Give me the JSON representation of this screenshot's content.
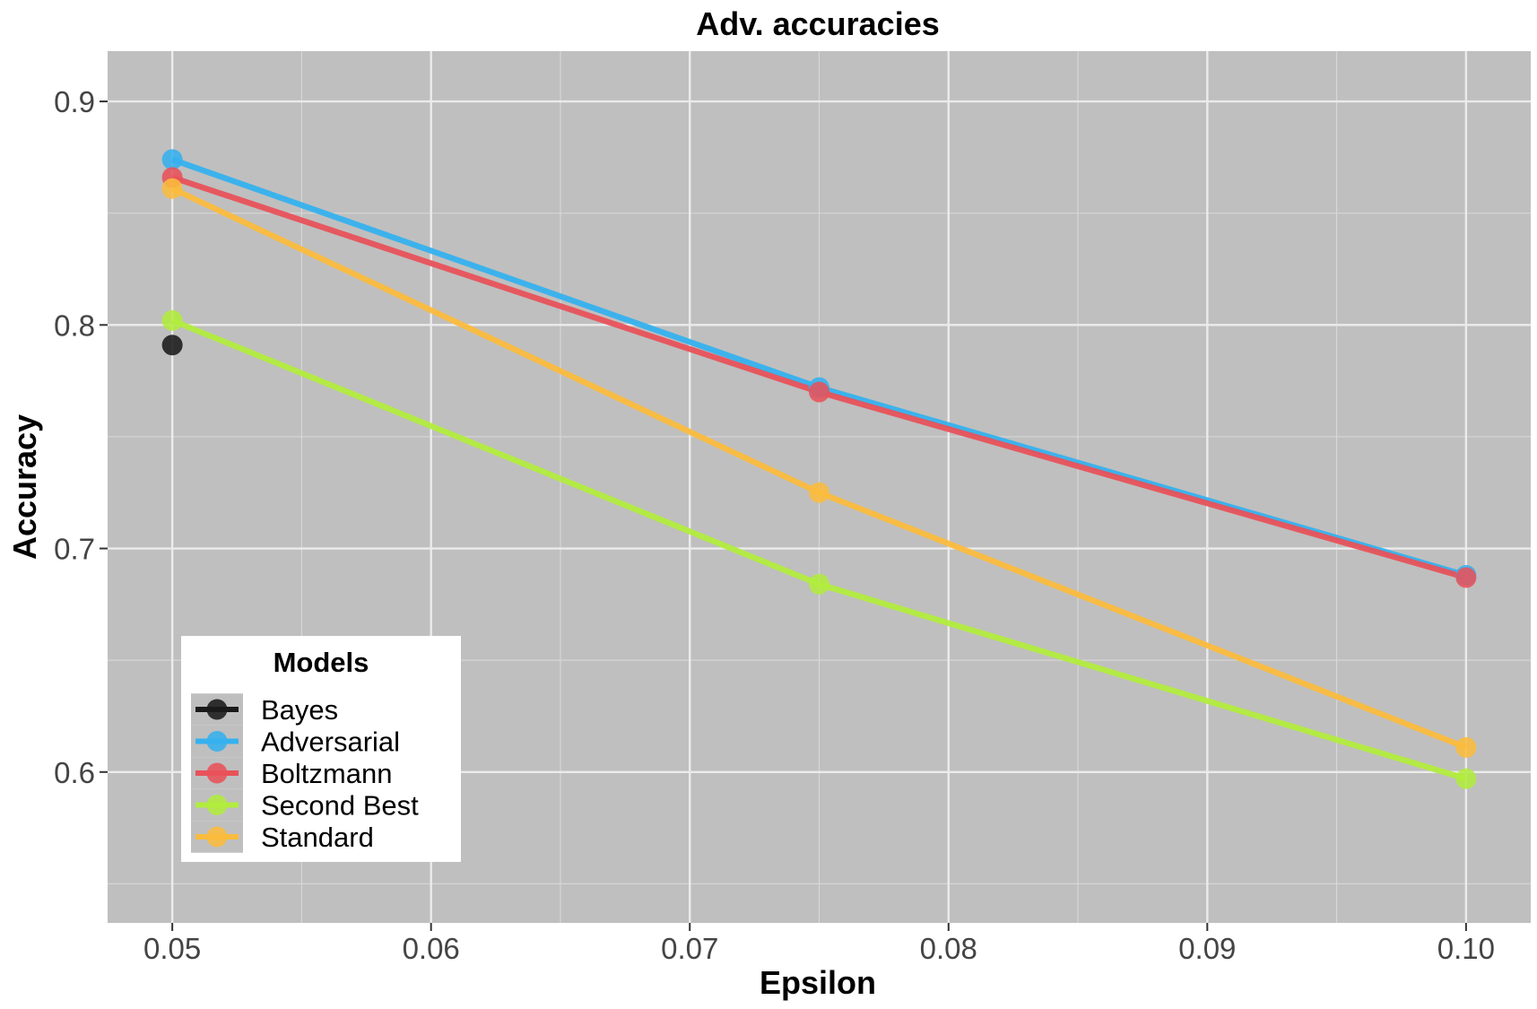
{
  "chart_data": {
    "type": "line",
    "title": "Adv. accuracies",
    "xlabel": "Epsilon",
    "ylabel": "Accuracy",
    "xlim": [
      0.0475,
      0.1025
    ],
    "ylim": [
      0.5325,
      0.9225
    ],
    "x_ticks": [
      0.05,
      0.06,
      0.07,
      0.08,
      0.09,
      0.1
    ],
    "x_tick_labels": [
      "0.05",
      "0.06",
      "0.07",
      "0.08",
      "0.09",
      "0.10"
    ],
    "x_minor_ticks": [
      0.055,
      0.065,
      0.075,
      0.085,
      0.095
    ],
    "y_ticks": [
      0.6,
      0.7,
      0.8,
      0.9
    ],
    "y_tick_labels": [
      "0.6",
      "0.7",
      "0.8",
      "0.9"
    ],
    "y_minor_ticks": [
      0.55,
      0.65,
      0.75,
      0.85
    ],
    "grid": true,
    "background": "#bfbfbf",
    "legend": {
      "title": "Models",
      "position": "bottom-left",
      "entries": [
        "Bayes",
        "Adversarial",
        "Boltzmann",
        "Second Best",
        "Standard"
      ]
    },
    "series": [
      {
        "name": "Bayes",
        "color": "#1a1a1a",
        "x": [
          0.05
        ],
        "y": [
          0.791
        ]
      },
      {
        "name": "Adversarial",
        "color": "#35b1ee",
        "x": [
          0.05,
          0.075,
          0.1
        ],
        "y": [
          0.874,
          0.772,
          0.688
        ]
      },
      {
        "name": "Boltzmann",
        "color": "#e8525a",
        "x": [
          0.05,
          0.075,
          0.1
        ],
        "y": [
          0.866,
          0.77,
          0.687
        ]
      },
      {
        "name": "Second Best",
        "color": "#b2ec3e",
        "x": [
          0.05,
          0.075,
          0.1
        ],
        "y": [
          0.802,
          0.684,
          0.597
        ]
      },
      {
        "name": "Standard",
        "color": "#fbbc3e",
        "x": [
          0.05,
          0.075,
          0.1
        ],
        "y": [
          0.861,
          0.725,
          0.611
        ]
      }
    ]
  }
}
